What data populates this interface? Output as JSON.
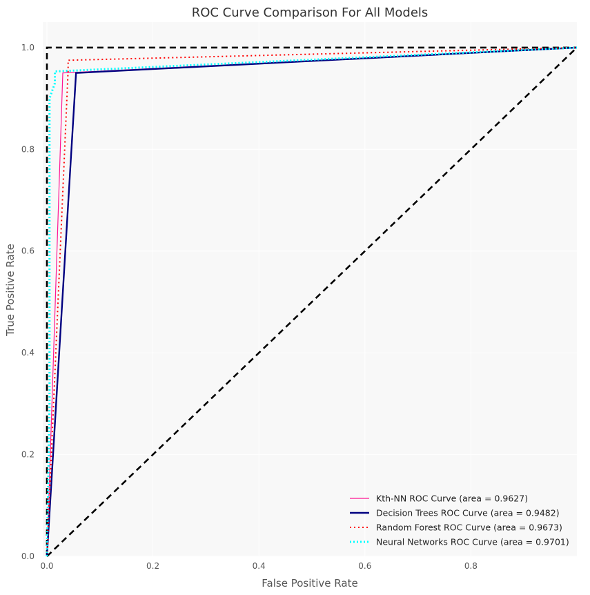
{
  "chart_data": {
    "type": "line",
    "title": "ROC Curve Comparison For All Models",
    "xlabel": "False Positive Rate",
    "ylabel": "True Positive Rate",
    "xlim": [
      0.0,
      1.0
    ],
    "ylim": [
      0.0,
      1.05
    ],
    "xticks": [
      0.0,
      0.2,
      0.4,
      0.6,
      0.8
    ],
    "yticks": [
      0.0,
      0.2,
      0.4,
      0.6,
      0.8,
      1.0
    ],
    "xtick_labels": [
      "0.0",
      "0.2",
      "0.4",
      "0.6",
      "0.8"
    ],
    "ytick_labels": [
      "0.0",
      "0.2",
      "0.4",
      "0.6",
      "0.8",
      "1.0"
    ],
    "grid": true,
    "legend_position": "lower-right",
    "series": [
      {
        "name": "Kth-NN ROC Curve (area = 0.9627)",
        "color": "#ff1493",
        "style": "solid",
        "x": [
          0.0,
          0.03,
          1.0
        ],
        "y": [
          0.0,
          0.95,
          1.0
        ]
      },
      {
        "name": "Decision Trees ROC Curve (area = 0.9482)",
        "color": "#000080",
        "style": "solid-thick",
        "x": [
          0.0,
          0.055,
          1.0
        ],
        "y": [
          0.0,
          0.95,
          1.0
        ]
      },
      {
        "name": "Random Forest ROC Curve (area = 0.9673)",
        "color": "#ff0000",
        "style": "dotted",
        "x": [
          0.0,
          0.04,
          0.04,
          1.0
        ],
        "y": [
          0.0,
          0.955,
          0.975,
          1.0
        ]
      },
      {
        "name": "Neural Networks ROC Curve (area = 0.9701)",
        "color": "#00ffff",
        "style": "dotted-thick",
        "x": [
          0.0,
          0.005,
          0.005,
          0.015,
          0.015,
          1.0
        ],
        "y": [
          0.0,
          0.3,
          0.9,
          0.93,
          0.953,
          1.0
        ]
      }
    ],
    "reference_lines": [
      {
        "color": "#000000",
        "style": "dashed",
        "x": [
          0.0,
          1.0
        ],
        "y": [
          0.0,
          1.0
        ]
      },
      {
        "color": "#000000",
        "style": "dashed",
        "x": [
          0.0,
          0.0,
          1.0
        ],
        "y": [
          0.0,
          1.0,
          1.0
        ]
      }
    ]
  }
}
